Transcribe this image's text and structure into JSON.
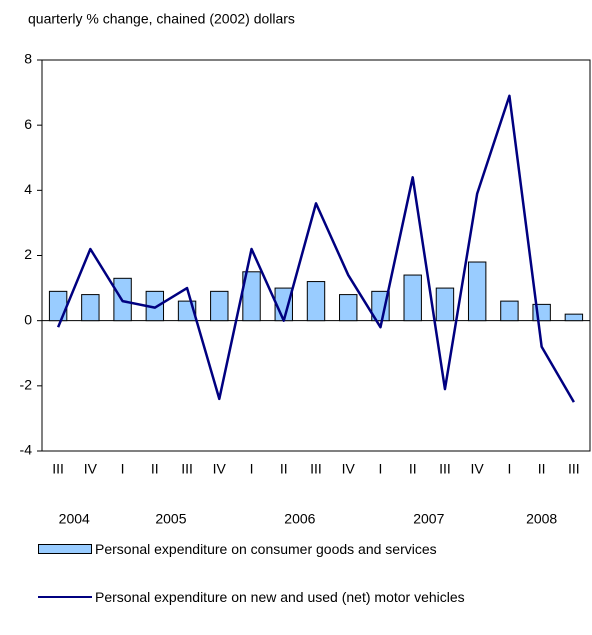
{
  "chart_data": {
    "type": "bar_line",
    "subtitle": "quarterly % change, chained (2002) dollars",
    "categories": [
      "III",
      "IV",
      "I",
      "II",
      "III",
      "IV",
      "I",
      "II",
      "III",
      "IV",
      "I",
      "II",
      "III",
      "IV",
      "I",
      "II",
      "III"
    ],
    "years": [
      "2004",
      "2005",
      "2006",
      "2007",
      "2008"
    ],
    "series": [
      {
        "name": "Personal expenditure on consumer goods and services",
        "type": "bar",
        "color": "#99ccff",
        "values": [
          0.9,
          0.8,
          1.3,
          0.9,
          0.6,
          0.9,
          1.5,
          1.0,
          1.2,
          0.8,
          0.9,
          1.4,
          1.0,
          1.8,
          0.6,
          0.5,
          0.2
        ]
      },
      {
        "name": "Personal expenditure on new and used (net) motor vehicles",
        "type": "line",
        "color": "#000080",
        "values": [
          -0.2,
          2.2,
          0.6,
          0.4,
          1.0,
          -2.4,
          2.2,
          0.0,
          3.6,
          1.4,
          -0.2,
          4.4,
          -2.1,
          3.9,
          6.9,
          -0.8,
          -2.5
        ]
      }
    ],
    "ylim": [
      -4,
      8
    ],
    "yticks": [
      -4,
      -2,
      0,
      2,
      4,
      6,
      8
    ],
    "grid": false
  }
}
